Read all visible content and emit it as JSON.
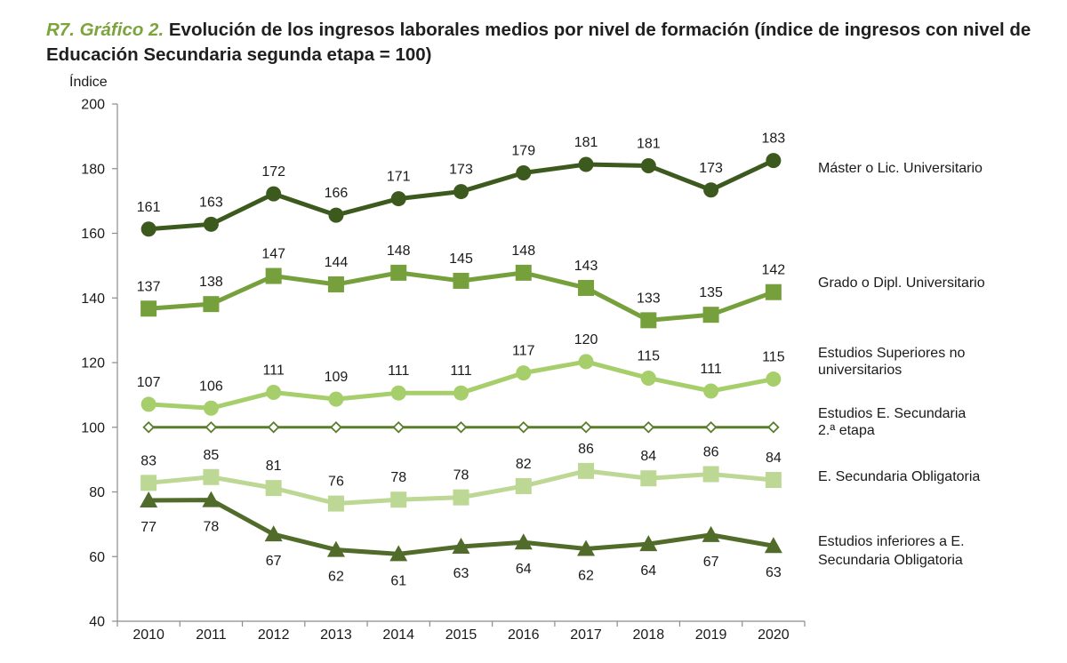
{
  "title": {
    "label": "R7. Gráfico 2.",
    "text": "Evolución de los ingresos laborales medios por nivel de formación (índice de ingresos con nivel de Educación Secundaria segunda etapa = 100)"
  },
  "chart_data": {
    "type": "line",
    "ylabel": "Índice",
    "xlabel": "",
    "ylim": [
      40,
      200
    ],
    "yticks": [
      40,
      60,
      80,
      100,
      120,
      140,
      160,
      180,
      200
    ],
    "categories": [
      "2010",
      "2011",
      "2012",
      "2013",
      "2014",
      "2015",
      "2016",
      "2017",
      "2018",
      "2019",
      "2020"
    ],
    "series": [
      {
        "name": "Máster o Lic. Universitario",
        "label_lines": [
          "Máster o Lic. Universitario"
        ],
        "marker": "circle",
        "color": "#3d5a1e",
        "values": [
          161.3,
          162.8,
          172.2,
          165.6,
          170.7,
          172.9,
          178.7,
          181.3,
          180.9,
          173.4,
          182.5
        ],
        "labels": [
          "161",
          "163",
          "172",
          "166",
          "171",
          "173",
          "179",
          "181",
          "181",
          "173",
          "183"
        ],
        "label_pos": "above"
      },
      {
        "name": "Grado o Dipl. Universitario",
        "label_lines": [
          "Grado o Dipl. Universitario"
        ],
        "marker": "square",
        "color": "#76a03c",
        "values": [
          136.7,
          138.1,
          146.8,
          144.2,
          147.8,
          145.3,
          147.8,
          143.1,
          133.1,
          134.8,
          141.8
        ],
        "labels": [
          "137",
          "138",
          "147",
          "144",
          "148",
          "145",
          "148",
          "143",
          "133",
          "135",
          "142"
        ],
        "label_pos": "above"
      },
      {
        "name": "Estudios Superiores no universitarios",
        "label_lines": [
          "Estudios Superiores no",
          "universitarios"
        ],
        "marker": "circle",
        "color": "#a6cf6c",
        "values": [
          107.1,
          105.9,
          110.8,
          108.7,
          110.6,
          110.6,
          116.8,
          120.3,
          115.2,
          111.2,
          114.9
        ],
        "labels": [
          "107",
          "106",
          "111",
          "109",
          "111",
          "111",
          "117",
          "120",
          "115",
          "111",
          "115"
        ],
        "label_pos": "above"
      },
      {
        "name": "Estudios E. Secundaria 2.ª etapa",
        "label_lines": [
          "Estudios E. Secundaria",
          "2.ª etapa"
        ],
        "marker": "diamond",
        "color": "#5a7d2a",
        "values": [
          100,
          100,
          100,
          100,
          100,
          100,
          100,
          100,
          100,
          100,
          100
        ],
        "labels": [],
        "label_pos": "none"
      },
      {
        "name": "E. Secundaria Obligatoria",
        "label_lines": [
          "E. Secundaria Obligatoria"
        ],
        "marker": "square",
        "color": "#bcd894",
        "values": [
          82.8,
          84.6,
          81.2,
          76.4,
          77.6,
          78.3,
          81.8,
          86.5,
          84.2,
          85.5,
          83.7
        ],
        "labels": [
          "83",
          "85",
          "81",
          "76",
          "78",
          "78",
          "82",
          "86",
          "84",
          "86",
          "84"
        ],
        "label_pos": "above"
      },
      {
        "name": "Estudios inferiores a E. Secundaria Obligatoria",
        "label_lines": [
          "Estudios inferiores a E.",
          "Secundaria Obligatoria"
        ],
        "marker": "triangle",
        "color": "#506b2a",
        "values": [
          77.4,
          77.5,
          66.9,
          62.1,
          60.8,
          63.1,
          64.4,
          62.4,
          63.9,
          66.7,
          63.3
        ],
        "labels": [
          "77",
          "78",
          "67",
          "62",
          "61",
          "63",
          "64",
          "62",
          "64",
          "67",
          "63"
        ],
        "label_pos": "below"
      }
    ]
  }
}
